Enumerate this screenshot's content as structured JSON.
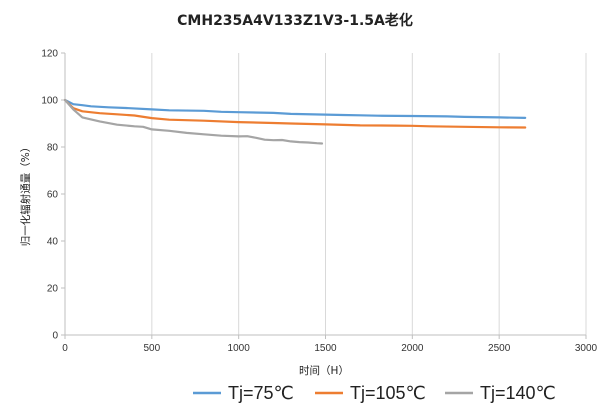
{
  "chart_data": {
    "type": "line",
    "title": "CMH235A4V133Z1V3-1.5A老化",
    "xlabel": "时间（H）",
    "ylabel": "归一化辐射通量（%）",
    "xlim": [
      0,
      3000
    ],
    "ylim": [
      0,
      120
    ],
    "xticks": [
      0,
      500,
      1000,
      1500,
      2000,
      2500,
      3000
    ],
    "yticks": [
      0,
      20,
      40,
      60,
      80,
      100,
      120
    ],
    "x_tick_labels": [
      "0",
      "500",
      "1000",
      "1500",
      "2000",
      "2500",
      "3000"
    ],
    "y_tick_labels": [
      "0",
      "20",
      "40",
      "60",
      "80",
      "100",
      "120"
    ],
    "grid": "vertical",
    "legend_position": "bottom",
    "series": [
      {
        "name": "Tj=75℃",
        "color": "#5B9BD5",
        "x": [
          0,
          48,
          100,
          150,
          250,
          350,
          500,
          600,
          800,
          900,
          1000,
          1200,
          1300,
          1500,
          1600,
          1700,
          1800,
          2000,
          2200,
          2300,
          2500,
          2650
        ],
        "y": [
          100,
          98.2,
          97.8,
          97.3,
          96.9,
          96.6,
          96.0,
          95.6,
          95.4,
          95.0,
          94.8,
          94.5,
          94.1,
          93.8,
          93.6,
          93.5,
          93.3,
          93.2,
          93.0,
          92.8,
          92.6,
          92.4
        ]
      },
      {
        "name": "Tj=105℃",
        "color": "#ED7D31",
        "x": [
          0,
          48,
          100,
          200,
          300,
          400,
          500,
          600,
          800,
          1000,
          1200,
          1300,
          1500,
          1700,
          1900,
          2000,
          2100,
          2300,
          2500,
          2650
        ],
        "y": [
          100,
          96.5,
          95.2,
          94.4,
          93.9,
          93.4,
          92.3,
          91.6,
          91.2,
          90.6,
          90.2,
          90.0,
          89.6,
          89.2,
          89.1,
          89.0,
          88.8,
          88.6,
          88.4,
          88.3
        ]
      },
      {
        "name": "Tj=140℃",
        "color": "#A5A5A5",
        "x": [
          0,
          48,
          100,
          200,
          300,
          400,
          450,
          500,
          600,
          700,
          800,
          900,
          1000,
          1050,
          1100,
          1150,
          1200,
          1250,
          1300,
          1350,
          1400,
          1450,
          1480
        ],
        "y": [
          100,
          96.0,
          92.6,
          90.9,
          89.5,
          88.8,
          88.6,
          87.5,
          86.9,
          86.0,
          85.4,
          84.8,
          84.5,
          84.6,
          83.9,
          83.1,
          82.9,
          83.0,
          82.4,
          82.1,
          81.9,
          81.6,
          81.5
        ]
      }
    ]
  }
}
